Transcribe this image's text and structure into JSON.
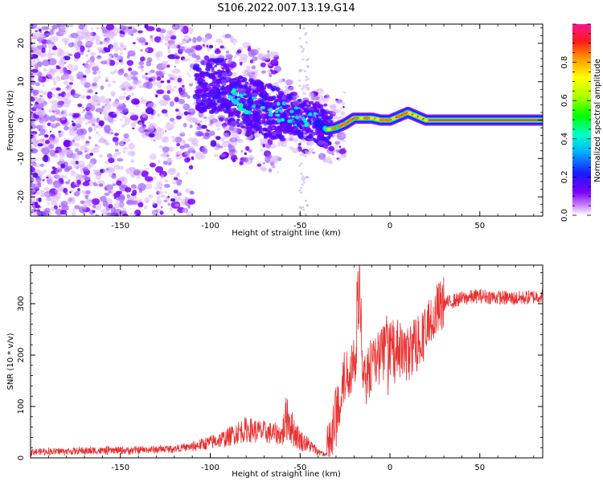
{
  "title": "S106.2022.007.13.19.G14",
  "chart_data": [
    {
      "type": "heatmap",
      "xlabel": "Height of straight line (km)",
      "ylabel": "Frequency (Hz)",
      "xlim": [
        -200,
        85
      ],
      "ylim": [
        -25,
        25
      ],
      "x_ticks": [
        -150,
        -100,
        -50,
        0,
        50
      ],
      "y_ticks": [
        -20,
        -10,
        0,
        10,
        20
      ],
      "colorbar": {
        "label": "Normalized spectral amplitude",
        "range": [
          0,
          1
        ],
        "ticks": [
          0.0,
          0.2,
          0.4,
          0.6,
          0.8
        ],
        "colormap": "rainbow (white → violet → blue → cyan → green → yellow → orange → red → magenta)"
      },
      "ridge": {
        "description": "spectral peak frequency vs height",
        "x": [
          -90,
          -80,
          -70,
          -60,
          -50,
          -40,
          -35,
          -30,
          -25,
          -20,
          -15,
          -10,
          -5,
          0,
          5,
          10,
          15,
          20,
          30,
          50,
          85
        ],
        "y": [
          6,
          4,
          2.5,
          2,
          0.5,
          -1,
          -2.5,
          -2,
          -1,
          0.5,
          0.5,
          0.5,
          0,
          0,
          1,
          2,
          1,
          0,
          0,
          0,
          0
        ]
      }
    },
    {
      "type": "line",
      "xlabel": "Height of straight line (km)",
      "ylabel": "SNR (10 * v/v)",
      "xlim": [
        -200,
        85
      ],
      "ylim": [
        0,
        375
      ],
      "x_ticks": [
        -150,
        -100,
        -50,
        0,
        50
      ],
      "y_ticks": [
        0,
        100,
        200,
        300
      ],
      "series": [
        {
          "color": "#e83030",
          "x": [
            -200,
            -180,
            -160,
            -140,
            -120,
            -110,
            -100,
            -90,
            -85,
            -80,
            -70,
            -60,
            -57,
            -55,
            -50,
            -45,
            -40,
            -35,
            -32,
            -30,
            -28,
            -26,
            -24,
            -22,
            -20,
            -18,
            -17,
            -15,
            -12,
            -10,
            -5,
            0,
            5,
            10,
            15,
            20,
            25,
            30,
            40,
            50,
            60,
            70,
            85
          ],
          "y": [
            12,
            13,
            14,
            15,
            18,
            22,
            30,
            40,
            50,
            55,
            50,
            45,
            85,
            60,
            35,
            25,
            12,
            5,
            45,
            90,
            120,
            150,
            160,
            175,
            200,
            210,
            380,
            130,
            165,
            190,
            200,
            215,
            210,
            200,
            230,
            245,
            280,
            300,
            310,
            315,
            312,
            310,
            315
          ]
        }
      ]
    }
  ]
}
